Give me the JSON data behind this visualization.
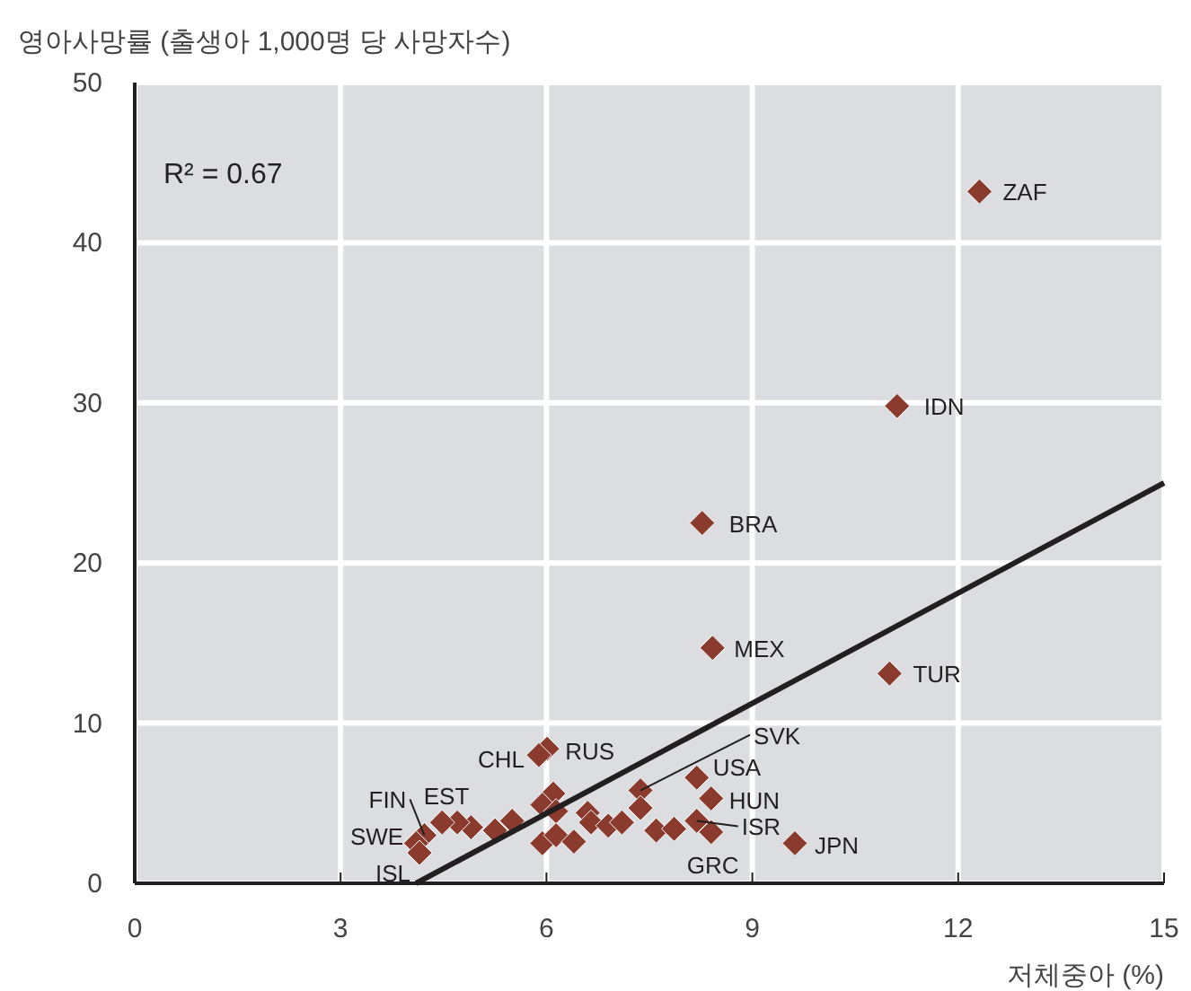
{
  "chart_data": {
    "type": "scatter",
    "ylabel": "영아사망률 (출생아 1,000명 당 사망자수)",
    "xlabel": "저체중아 (%)",
    "xlim": [
      0,
      15
    ],
    "ylim": [
      0,
      50
    ],
    "xticks": [
      0,
      3,
      6,
      9,
      12,
      15
    ],
    "yticks": [
      0,
      10,
      20,
      30,
      40,
      50
    ],
    "grid": true,
    "series": [
      {
        "marker": "diamond",
        "color": "#8b3a2e",
        "x": [
          12.31,
          11.11,
          8.27,
          8.42,
          11.0,
          9.62,
          6.01,
          5.89,
          6.1,
          5.94,
          6.14,
          5.94,
          6.14,
          5.5,
          5.25,
          4.9,
          4.7,
          4.48,
          4.22,
          4.1,
          4.15,
          6.4,
          6.6,
          6.65,
          6.9,
          7.1,
          7.37,
          7.37,
          7.6,
          7.86,
          8.19,
          8.4,
          8.19,
          8.4
        ],
        "values": [
          43.2,
          29.8,
          22.5,
          14.7,
          13.1,
          2.5,
          8.4,
          8.0,
          5.6,
          4.9,
          4.5,
          2.5,
          3.0,
          3.9,
          3.3,
          3.5,
          3.8,
          3.8,
          3.0,
          2.5,
          1.9,
          2.6,
          4.4,
          3.8,
          3.6,
          3.8,
          5.8,
          4.7,
          3.3,
          3.4,
          6.6,
          5.3,
          3.9,
          3.2
        ]
      },
      {
        "type": "line",
        "color": "#231f20",
        "x": [
          4.1,
          15
        ],
        "values": [
          0,
          25
        ]
      }
    ],
    "annotations": [
      "R² = 0.67",
      {
        "text": "ZAF",
        "x": 12.31,
        "y": 43.2
      },
      {
        "text": "IDN",
        "x": 11.11,
        "y": 29.8
      },
      {
        "text": "BRA",
        "x": 8.27,
        "y": 22.5
      },
      {
        "text": "MEX",
        "x": 8.42,
        "y": 14.7
      },
      {
        "text": "TUR",
        "x": 11.0,
        "y": 13.1
      },
      {
        "text": "JPN",
        "x": 9.62,
        "y": 2.5
      },
      {
        "text": "RUS",
        "x": 6.01,
        "y": 8.4
      },
      {
        "text": "CHL",
        "x": 5.89,
        "y": 8.0
      },
      {
        "text": "SVK",
        "x": 7.37,
        "y": 5.8
      },
      {
        "text": "USA",
        "x": 8.19,
        "y": 6.6
      },
      {
        "text": "HUN",
        "x": 8.4,
        "y": 5.3
      },
      {
        "text": "ISR",
        "x": 8.19,
        "y": 3.9
      },
      {
        "text": "GRC",
        "x": 8.4,
        "y": 3.2
      },
      {
        "text": "FIN",
        "x": 4.22,
        "y": 3.0
      },
      {
        "text": "EST",
        "x": 4.7,
        "y": 3.8
      },
      {
        "text": "SWE",
        "x": 4.1,
        "y": 2.5
      },
      {
        "text": "ISL",
        "x": 4.15,
        "y": 1.9
      }
    ]
  }
}
